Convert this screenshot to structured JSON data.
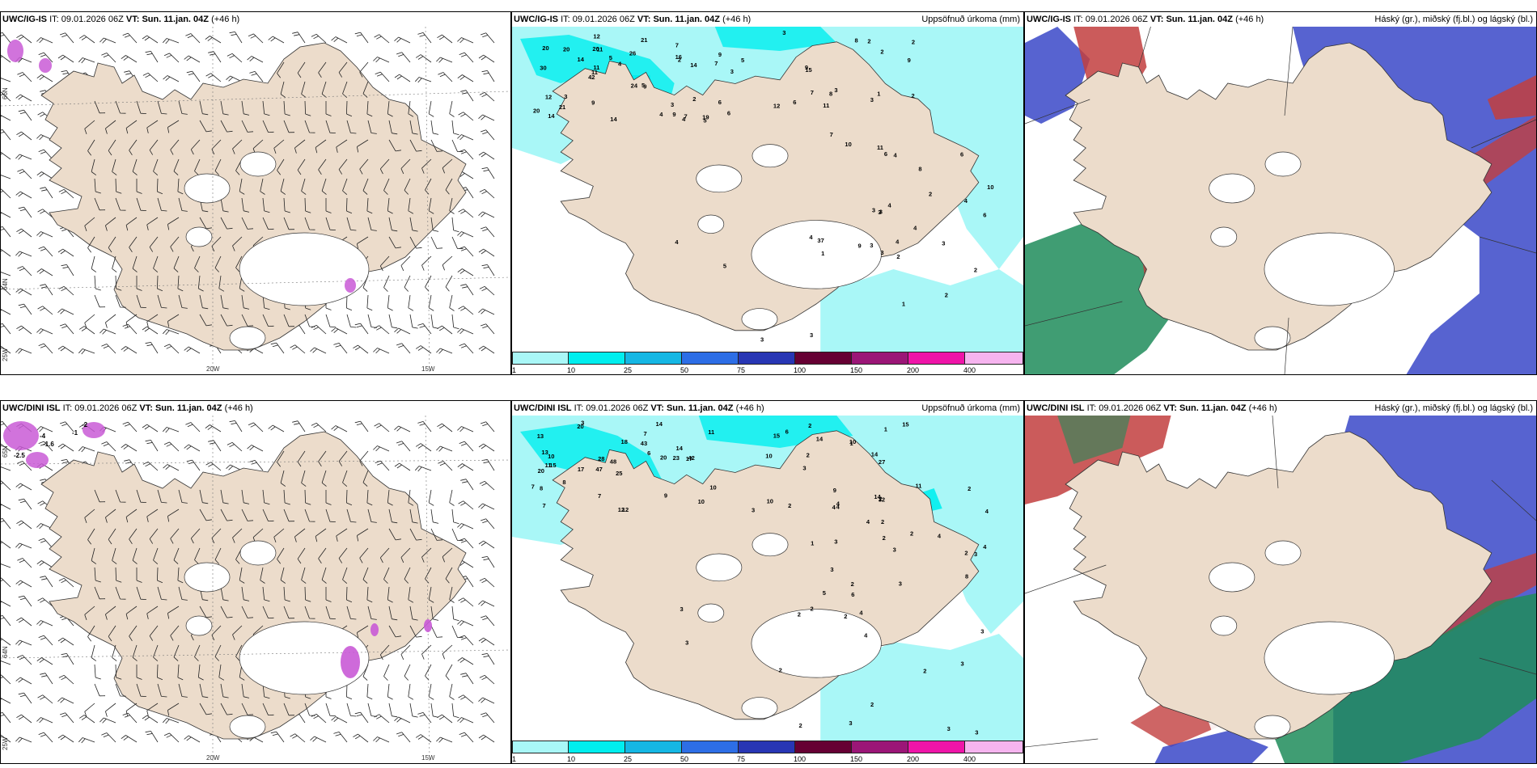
{
  "colors": {
    "land": "#ecdccb",
    "precip_1": "#a9f7f7",
    "precip_10": "#00eeee",
    "precip_25": "#15b7e4",
    "precip_50": "#2d6ee6",
    "precip_75": "#2836b4",
    "precip_100": "#660033",
    "precip_150": "#9b1677",
    "precip_200": "#ef14a8",
    "precip_400": "#f6b4ef",
    "cloud_high": "#c23e3e",
    "cloud_mid": "#1f8c5a",
    "cloud_low": "#3a48c8"
  },
  "legend": [
    "1",
    "10",
    "25",
    "50",
    "75",
    "100",
    "150",
    "200",
    "400"
  ],
  "axis_labels": {
    "lon_20w": "20W",
    "lon_15w": "15W",
    "lon_25w": "25W",
    "lat_66n": "66N",
    "lat_64n": "64N",
    "lat_65n": "65N"
  },
  "top": {
    "wind": {
      "title_model": "UWC/IG-IS",
      "title_it_label": "IT:",
      "title_it": "09.01.2026 06Z",
      "title_vt_label": "VT:",
      "title_vt": "Sun. 11.jan. 04Z",
      "title_lead": "(+46 h)"
    },
    "precip": {
      "title_model": "UWC/IG-IS",
      "title_it_label": "IT:",
      "title_it": "09.01.2026 06Z",
      "title_vt_label": "VT:",
      "title_vt": "Sun. 11.jan. 04Z",
      "title_lead": "(+46 h)",
      "right_title": "Uppsöfnuð úrkoma (mm)"
    },
    "cloud": {
      "title_model": "UWC/IG-IS",
      "title_it_label": "IT:",
      "title_it": "09.01.2026 06Z",
      "title_vt_label": "VT:",
      "title_vt": "Sun. 11.jan. 04Z",
      "title_lead": "(+46 h)",
      "right_title": "Háský (gr.), miðský (fj.bl.) og lágský (bl.)"
    }
  },
  "bottom": {
    "wind": {
      "title_model": "UWC/DINI ISL",
      "title_it_label": "IT:",
      "title_it": "09.01.2026 06Z",
      "title_vt_label": "VT:",
      "title_vt": "Sun. 11.jan. 04Z",
      "title_lead": "(+46 h)",
      "anomalies": [
        "-2",
        "-1",
        "-1.6",
        "-2.5",
        "-4"
      ]
    },
    "precip": {
      "title_model": "UWC/DINI ISL",
      "title_it_label": "IT:",
      "title_it": "09.01.2026 06Z",
      "title_vt_label": "VT:",
      "title_vt": "Sun. 11.jan. 04Z",
      "title_lead": "(+46 h)",
      "right_title": "Uppsöfnuð úrkoma (mm)"
    },
    "cloud": {
      "title_model": "UWC/DINI ISL",
      "title_it_label": "IT:",
      "title_it": "09.01.2026 06Z",
      "title_vt_label": "VT:",
      "title_vt": "Sun. 11.jan. 04Z",
      "title_lead": "(+46 h)",
      "right_title": "Háský (gr.), miðský (fj.bl.) og lágský (bl.)"
    }
  },
  "precip_values_top": [
    "9",
    "30",
    "7",
    "42",
    "26",
    "14",
    "20",
    "5",
    "12",
    "14",
    "20",
    "21",
    "11",
    "4",
    "9",
    "20",
    "12",
    "14",
    "24",
    "16",
    "11",
    "9",
    "11",
    "20",
    "21",
    "3",
    "4",
    "3",
    "5",
    "14",
    "5",
    "7",
    "8",
    "6",
    "9",
    "9",
    "7",
    "12",
    "15",
    "2",
    "2",
    "2",
    "3",
    "11",
    "6",
    "5",
    "4",
    "6",
    "2",
    "3",
    "3",
    "2",
    "9",
    "8",
    "19",
    "2",
    "3",
    "6",
    "6",
    "3",
    "9",
    "2",
    "10",
    "4",
    "7",
    "7",
    "10",
    "11",
    "4",
    "4",
    "37",
    "8",
    "4",
    "3",
    "6",
    "4",
    "3",
    "2",
    "4",
    "1",
    "2",
    "3",
    "1",
    "1",
    "2",
    "4",
    "3",
    "3",
    "3",
    "5",
    "3"
  ],
  "precip_values_bottom": [
    "3",
    "7",
    "17",
    "47",
    "25",
    "15",
    "13",
    "43",
    "20",
    "18",
    "48",
    "7",
    "20",
    "17",
    "12",
    "12",
    "7",
    "14",
    "6",
    "8",
    "10",
    "11",
    "42",
    "23",
    "7",
    "13",
    "28",
    "20",
    "9",
    "8",
    "14",
    "14",
    "10",
    "10",
    "9",
    "11",
    "14",
    "10",
    "15",
    "6",
    "10",
    "3",
    "4",
    "11",
    "2",
    "1",
    "32",
    "10",
    "14",
    "3",
    "15",
    "27",
    "2",
    "1",
    "2",
    "2",
    "2",
    "3",
    "2",
    "2",
    "3",
    "8",
    "4",
    "4",
    "3",
    "1",
    "2",
    "3",
    "4",
    "4",
    "5",
    "2",
    "4",
    "4",
    "2",
    "3",
    "4",
    "4",
    "3",
    "6",
    "2",
    "3",
    "3",
    "3",
    "2",
    "2",
    "3",
    "2",
    "2",
    "2",
    "3",
    "3",
    "2"
  ]
}
